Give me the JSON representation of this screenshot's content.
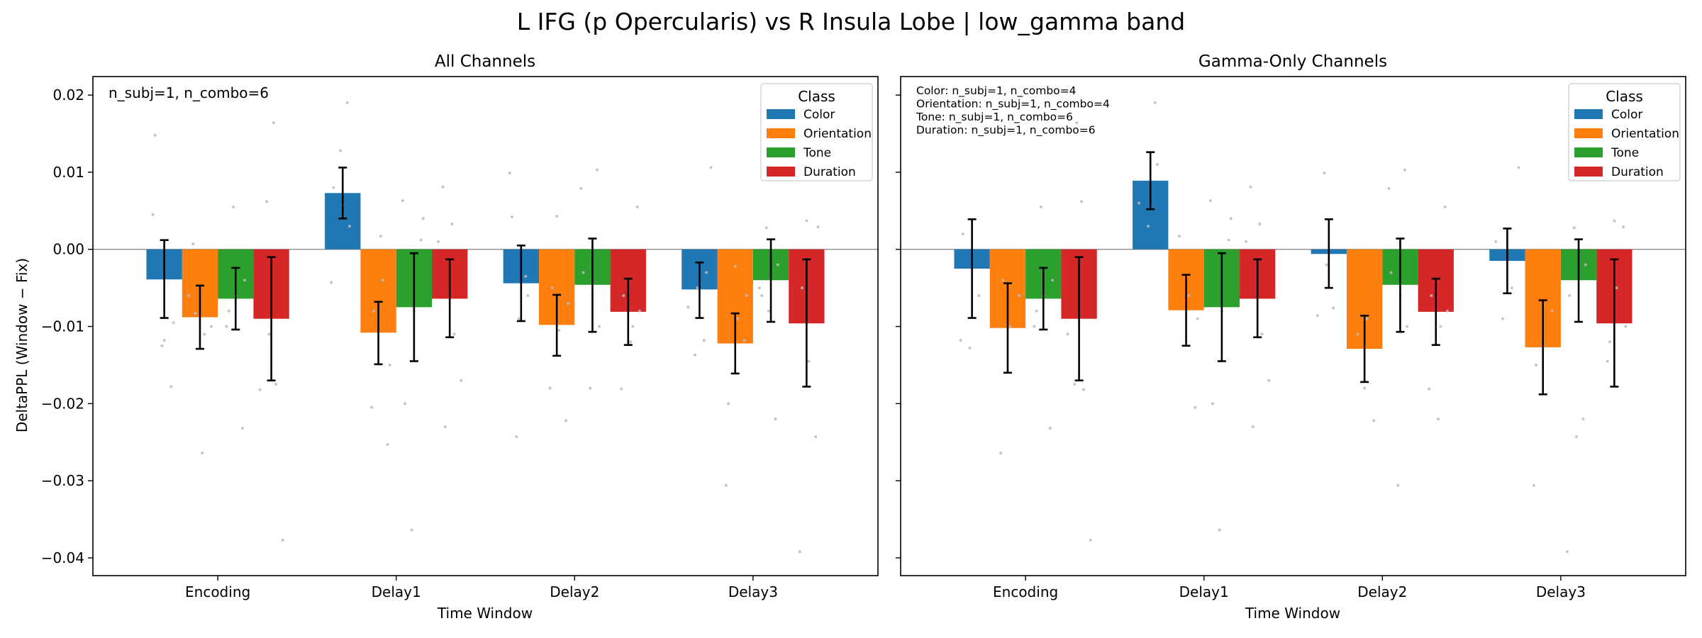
{
  "figure": {
    "suptitle": "L IFG (p Opercularis) vs R Insula Lobe  |  low_gamma band"
  },
  "colors": {
    "Color": "#1f77b4",
    "Orientation": "#ff7f0e",
    "Tone": "#2ca02c",
    "Duration": "#d62728",
    "points": "#bbbbbb",
    "errorbar": "#000000",
    "zeroline": "#808080"
  },
  "chart_data": [
    {
      "type": "bar",
      "title": "All Channels",
      "xlabel": "Time Window",
      "ylabel": "DeltaPPL (Window − Fix)",
      "ylim": [
        -0.042,
        0.022
      ],
      "yticks": [
        0.02,
        0.01,
        0.0,
        -0.01,
        -0.02,
        -0.03,
        -0.04
      ],
      "ytick_labels": [
        "0.02",
        "0.01",
        "0.00",
        "−0.01",
        "−0.02",
        "−0.03",
        "−0.04"
      ],
      "categories": [
        "Encoding",
        "Delay1",
        "Delay2",
        "Delay3"
      ],
      "annotation": [
        "n_subj=1, n_combo=6"
      ],
      "legend": {
        "title": "Class",
        "position": "top-right"
      },
      "series": [
        {
          "name": "Color",
          "values": [
            -0.0039,
            0.0073,
            -0.0044,
            -0.0052
          ],
          "err_low": [
            -0.0089,
            0.004,
            -0.0093,
            -0.0089
          ],
          "err_high": [
            0.0012,
            0.0106,
            0.0005,
            -0.0017
          ],
          "points": [
            [
              0.0045,
              -0.0125,
              -0.0178,
              0.0148,
              -0.0118,
              -0.0095
            ],
            [
              0.019,
              -0.0043,
              0.0128,
              0.003,
              0.008,
              0.0058
            ],
            [
              -0.0243,
              -0.0035,
              0.0099,
              -0.009,
              -0.006,
              0.0042
            ],
            [
              0.0106,
              -0.0137,
              -0.0118,
              -0.0075,
              -0.005,
              -0.003
            ]
          ]
        },
        {
          "name": "Orientation",
          "values": [
            -0.0088,
            -0.0108,
            -0.0098,
            -0.0122
          ],
          "err_low": [
            -0.0129,
            -0.0149,
            -0.0138,
            -0.0161
          ],
          "err_high": [
            -0.0047,
            -0.0068,
            -0.0059,
            -0.0083
          ],
          "points": [
            [
              0.0007,
              -0.0264,
              -0.01,
              -0.0083,
              -0.011,
              -0.006
            ],
            [
              -0.0253,
              -0.0205,
              0.0017,
              -0.015,
              -0.008,
              -0.004
            ],
            [
              0.0043,
              -0.0222,
              -0.018,
              -0.0105,
              -0.007,
              -0.005
            ],
            [
              -0.0306,
              -0.0022,
              -0.0118,
              -0.02,
              -0.009,
              -0.006
            ]
          ]
        },
        {
          "name": "Tone",
          "values": [
            -0.0064,
            -0.0075,
            -0.0046,
            -0.004
          ],
          "err_low": [
            -0.0104,
            -0.0145,
            -0.0107,
            -0.0094
          ],
          "err_high": [
            -0.0024,
            -0.0005,
            0.0014,
            0.0013
          ],
          "points": [
            [
              0.0055,
              -0.0232,
              -0.01,
              -0.006,
              -0.004,
              -0.008
            ],
            [
              0.0063,
              -0.0364,
              0.0012,
              -0.02,
              -0.008,
              0.004
            ],
            [
              0.0103,
              0.0079,
              -0.018,
              -0.01,
              -0.003,
              -0.006
            ],
            [
              0.0028,
              -0.022,
              -0.005,
              -0.008,
              -0.002,
              -0.006
            ]
          ]
        },
        {
          "name": "Duration",
          "values": [
            -0.009,
            -0.0064,
            -0.0081,
            -0.0096
          ],
          "err_low": [
            -0.017,
            -0.0114,
            -0.0124,
            -0.0178
          ],
          "err_high": [
            -0.001,
            -0.0013,
            -0.0038,
            -0.0013
          ],
          "points": [
            [
              0.0164,
              -0.0377,
              0.0062,
              -0.0175,
              -0.0182,
              -0.011
            ],
            [
              0.0081,
              0.0033,
              -0.017,
              -0.023,
              -0.011,
              0.001
            ],
            [
              0.0055,
              -0.0181,
              -0.012,
              -0.008,
              -0.006,
              -0.01
            ],
            [
              0.0037,
              -0.0243,
              -0.0392,
              -0.0145,
              0.0029,
              -0.005
            ]
          ]
        }
      ]
    },
    {
      "type": "bar",
      "title": "Gamma-Only Channels",
      "xlabel": "Time Window",
      "ylabel": "",
      "ylim": [
        -0.042,
        0.022
      ],
      "categories": [
        "Encoding",
        "Delay1",
        "Delay2",
        "Delay3"
      ],
      "annotation": [
        "Color: n_subj=1, n_combo=4",
        "Orientation: n_subj=1, n_combo=4",
        "Tone: n_subj=1, n_combo=6",
        "Duration: n_subj=1, n_combo=6"
      ],
      "legend": {
        "title": "Class",
        "position": "top-right"
      },
      "series": [
        {
          "name": "Color",
          "values": [
            -0.0025,
            0.0089,
            -0.0006,
            -0.0015
          ],
          "err_low": [
            -0.0089,
            0.0052,
            -0.005,
            -0.0057
          ],
          "err_high": [
            0.0039,
            0.0126,
            0.0039,
            0.0027
          ],
          "points": [
            [
              -0.0118,
              -0.0128,
              -0.006,
              0.002
            ],
            [
              0.019,
              0.006,
              0.003,
              0.011
            ],
            [
              0.0099,
              -0.0076,
              -0.0086,
              -0.002
            ],
            [
              0.0106,
              -0.009,
              -0.005,
              0.001
            ]
          ]
        },
        {
          "name": "Orientation",
          "values": [
            -0.0102,
            -0.0079,
            -0.0129,
            -0.0127
          ],
          "err_low": [
            -0.016,
            -0.0125,
            -0.0172,
            -0.0188
          ],
          "err_high": [
            -0.0044,
            -0.0033,
            -0.0086,
            -0.0066
          ],
          "points": [
            [
              -0.0264,
              -0.01,
              -0.006,
              -0.004
            ],
            [
              -0.0205,
              0.0017,
              -0.006,
              -0.009
            ],
            [
              -0.018,
              -0.0222,
              -0.011,
              -0.009
            ],
            [
              -0.0306,
              -0.012,
              -0.008,
              -0.015
            ]
          ]
        },
        {
          "name": "Tone",
          "values": [
            -0.0064,
            -0.0075,
            -0.0046,
            -0.004
          ],
          "err_low": [
            -0.0104,
            -0.0145,
            -0.0107,
            -0.0094
          ],
          "err_high": [
            -0.0024,
            -0.0005,
            0.0014,
            0.0013
          ],
          "points": [
            [
              0.0055,
              -0.0232,
              -0.01,
              -0.006,
              -0.004,
              -0.008
            ],
            [
              0.0063,
              -0.0364,
              0.0012,
              -0.02,
              -0.008,
              0.004
            ],
            [
              0.0103,
              0.0079,
              -0.0306,
              -0.01,
              -0.003,
              -0.006
            ],
            [
              0.0028,
              -0.022,
              -0.0392,
              -0.0243,
              -0.002,
              -0.006
            ]
          ]
        },
        {
          "name": "Duration",
          "values": [
            -0.009,
            -0.0064,
            -0.0081,
            -0.0096
          ],
          "err_low": [
            -0.017,
            -0.0114,
            -0.0124,
            -0.0178
          ],
          "err_high": [
            -0.001,
            -0.0013,
            -0.0038,
            -0.0013
          ],
          "points": [
            [
              0.0062,
              -0.0377,
              -0.0175,
              -0.0182,
              -0.011,
              0.0164
            ],
            [
              0.0081,
              0.0033,
              -0.017,
              -0.023,
              -0.011,
              0.001
            ],
            [
              0.0055,
              -0.0181,
              -0.022,
              -0.008,
              -0.006,
              -0.01
            ],
            [
              0.0037,
              0.0029,
              -0.0145,
              -0.005,
              -0.01,
              -0.012
            ]
          ]
        }
      ]
    }
  ]
}
